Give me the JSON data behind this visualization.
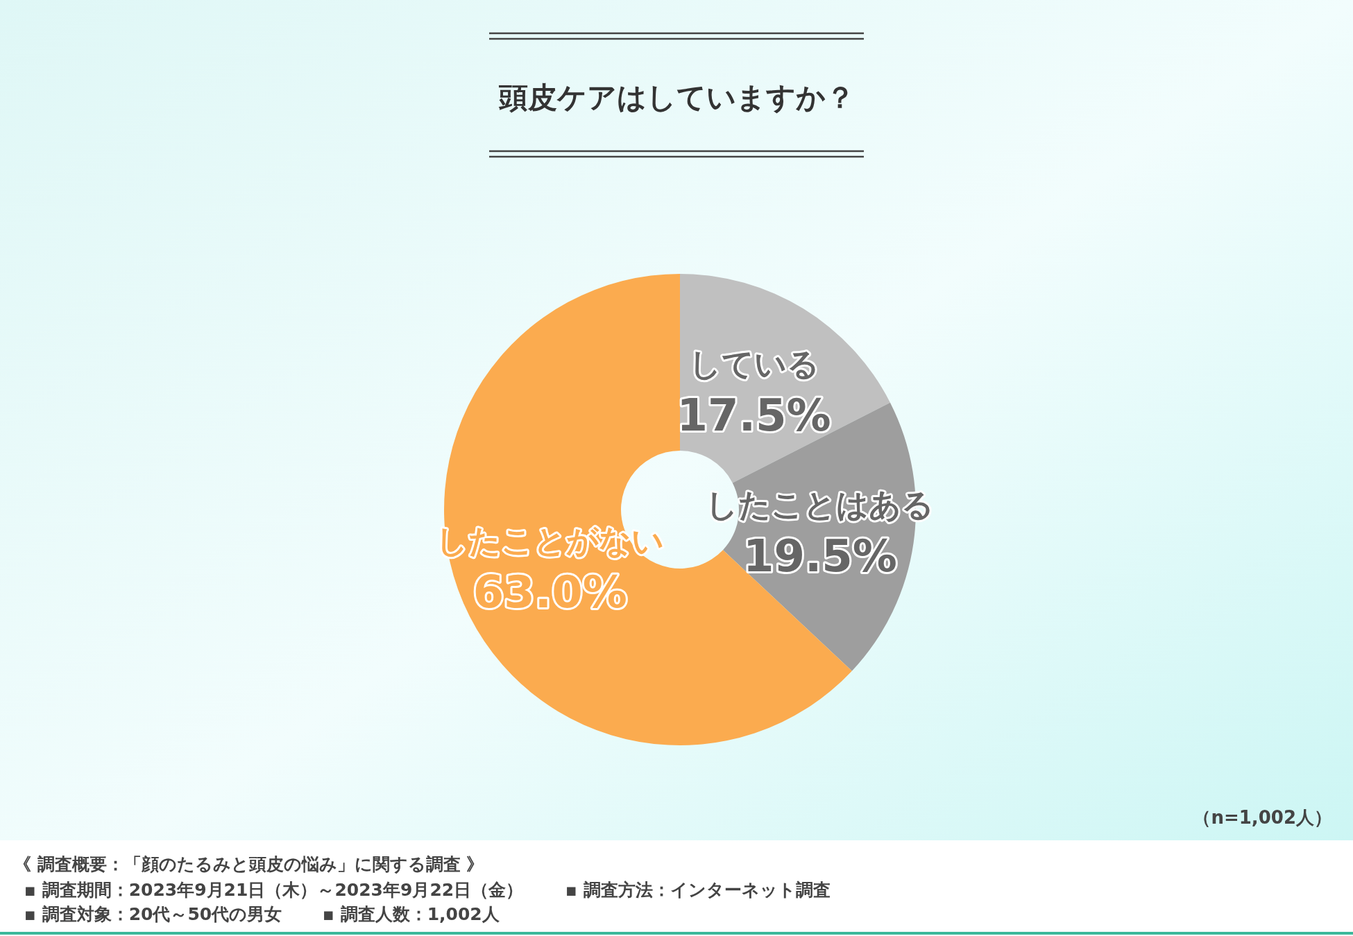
{
  "chart_data": {
    "type": "donut",
    "title": "頭皮ケアはしていますか？",
    "categories": [
      "している",
      "したことはある",
      "したことがない"
    ],
    "values": [
      17.5,
      19.5,
      63.0
    ],
    "colors": [
      "#c0c0c0",
      "#9e9e9e",
      "#fbab4f"
    ],
    "value_labels": [
      "17.5%",
      "19.5%",
      "63.0%"
    ],
    "annotations": [
      "（n=1,002人）",
      "《 調査概要：「顔のたるみと頭皮の悩み」に関する調査 》",
      "▪ 調査期間：2023年9月21日（木）～2023年9月22日（金）",
      "▪ 調査方法：インターネット調査",
      "▪ 調査対象：20代～50代の男女",
      "▪ 調査人数：1,002人"
    ]
  }
}
